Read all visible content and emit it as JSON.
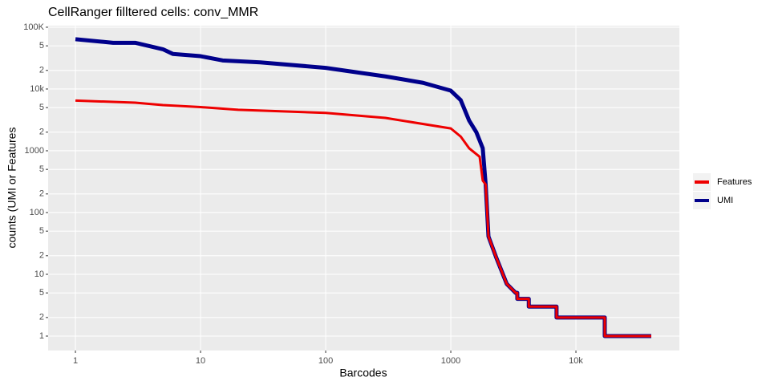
{
  "chart_data": {
    "type": "line",
    "title": "CellRanger filltered cells: conv_MMR",
    "x_label": "Barcodes",
    "y_label": "counts (UMI or Features",
    "log_x": true,
    "log_y": true,
    "grid": true,
    "legend": "right",
    "xlim": [
      0.605,
      67100
    ],
    "ylim": [
      0.584,
      106000
    ],
    "xticks": [
      1,
      10,
      100,
      1000,
      {
        "value": 10000,
        "label": "10k"
      }
    ],
    "yticks": [
      {
        "value": 100000,
        "label": "100K"
      },
      {
        "value": 50000,
        "label": "5"
      },
      {
        "value": 20000,
        "label": "2"
      },
      {
        "value": 10000,
        "label": "10k"
      },
      {
        "value": 5000,
        "label": "5"
      },
      {
        "value": 2000,
        "label": "2"
      },
      1000,
      {
        "value": 500,
        "label": "5"
      },
      {
        "value": 200,
        "label": "2"
      },
      100,
      {
        "value": 50,
        "label": "5"
      },
      {
        "value": 20,
        "label": "2"
      },
      10,
      5,
      2,
      1
    ],
    "series": [
      {
        "name": "UMI",
        "color": "#00008b",
        "x": [
          1,
          2,
          3,
          5,
          6,
          10,
          15,
          30,
          100,
          300,
          600,
          1000,
          1200,
          1400,
          1600,
          1800,
          1900,
          2000,
          2300,
          2800,
          3300,
          3400,
          3400,
          4200,
          4200,
          7000,
          7000,
          17000,
          17000,
          40000
        ],
        "values": [
          64000,
          56000,
          56000,
          44000,
          37000,
          34000,
          29000,
          27000,
          22000,
          16000,
          12600,
          9400,
          6600,
          3100,
          2000,
          1100,
          285,
          41,
          19,
          7,
          5,
          5,
          4,
          4,
          3,
          3,
          2,
          2,
          1,
          1
        ]
      },
      {
        "name": "Features",
        "color": "#ee0000",
        "x": [
          1,
          3,
          5,
          10,
          20,
          100,
          300,
          1000,
          1200,
          1400,
          1700,
          1800,
          1900,
          2000,
          2300,
          2800,
          3300,
          3400,
          3400,
          4200,
          4200,
          7000,
          7000,
          17000,
          17000,
          40000
        ],
        "values": [
          6500,
          6000,
          5500,
          5100,
          4600,
          4100,
          3400,
          2300,
          1700,
          1100,
          800,
          330,
          285,
          41,
          19,
          7,
          5,
          5,
          4,
          4,
          3,
          3,
          2,
          2,
          1,
          1
        ]
      }
    ]
  }
}
